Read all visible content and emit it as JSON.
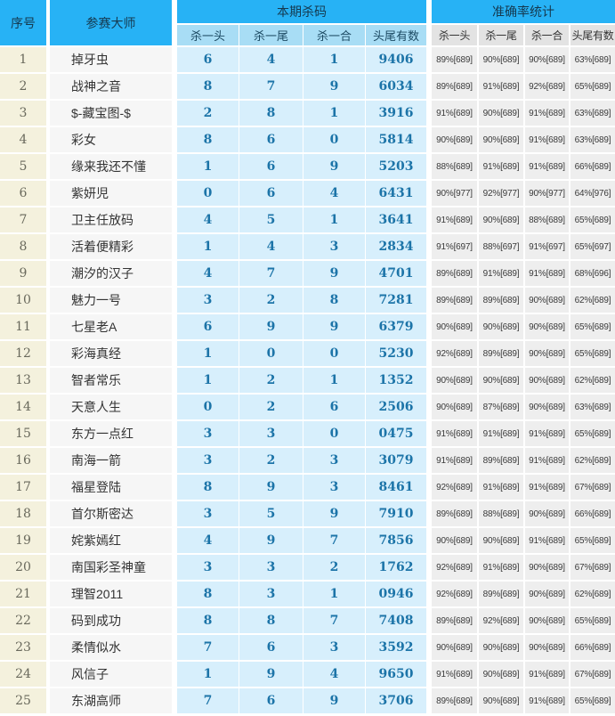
{
  "colors": {
    "header_blue": "#27b2f5",
    "subheader_blue": "#a8ddf5",
    "cell_blue": "#d7effc",
    "serial_bg": "#f4f1dd",
    "name_bg": "#f6f6f6",
    "subheader_gray": "#e3e3e3",
    "cell_gray": "#eeeeee",
    "value_blue": "#1c74a8"
  },
  "table": {
    "col_serial": "序号",
    "col_master": "参赛大师",
    "group_current": "本期杀码",
    "group_accuracy": "准确率统计",
    "sub_headers": [
      "杀一头",
      "杀一尾",
      "杀一合",
      "头尾有数"
    ],
    "rows": [
      {
        "no": "1",
        "name": "掉牙虫",
        "kill": [
          "6",
          "4",
          "1",
          "9406"
        ],
        "acc": [
          "89%[689]",
          "90%[689]",
          "90%[689]",
          "63%[689]"
        ]
      },
      {
        "no": "2",
        "name": "战神之音",
        "kill": [
          "8",
          "7",
          "9",
          "6034"
        ],
        "acc": [
          "89%[689]",
          "91%[689]",
          "92%[689]",
          "65%[689]"
        ]
      },
      {
        "no": "3",
        "name": "$-藏宝图-$",
        "kill": [
          "2",
          "8",
          "1",
          "3916"
        ],
        "acc": [
          "91%[689]",
          "90%[689]",
          "91%[689]",
          "63%[689]"
        ]
      },
      {
        "no": "4",
        "name": "彩女",
        "kill": [
          "8",
          "6",
          "0",
          "5814"
        ],
        "acc": [
          "90%[689]",
          "90%[689]",
          "91%[689]",
          "63%[689]"
        ]
      },
      {
        "no": "5",
        "name": "缘来我还不懂",
        "kill": [
          "1",
          "6",
          "9",
          "5203"
        ],
        "acc": [
          "88%[689]",
          "91%[689]",
          "91%[689]",
          "66%[689]"
        ]
      },
      {
        "no": "6",
        "name": "紫妍児",
        "kill": [
          "0",
          "6",
          "4",
          "6431"
        ],
        "acc": [
          "90%[977]",
          "92%[977]",
          "90%[977]",
          "64%[976]"
        ]
      },
      {
        "no": "7",
        "name": "卫主任放码",
        "kill": [
          "4",
          "5",
          "1",
          "3641"
        ],
        "acc": [
          "91%[689]",
          "90%[689]",
          "88%[689]",
          "65%[689]"
        ]
      },
      {
        "no": "8",
        "name": "活着便精彩",
        "kill": [
          "1",
          "4",
          "3",
          "2834"
        ],
        "acc": [
          "91%[697]",
          "88%[697]",
          "91%[697]",
          "65%[697]"
        ]
      },
      {
        "no": "9",
        "name": "潮汐的汉子",
        "kill": [
          "4",
          "7",
          "9",
          "4701"
        ],
        "acc": [
          "89%[689]",
          "91%[689]",
          "91%[689]",
          "68%[696]"
        ]
      },
      {
        "no": "10",
        "name": "魅力一号",
        "kill": [
          "3",
          "2",
          "8",
          "7281"
        ],
        "acc": [
          "89%[689]",
          "89%[689]",
          "90%[689]",
          "62%[689]"
        ]
      },
      {
        "no": "11",
        "name": "七星老A",
        "kill": [
          "6",
          "9",
          "9",
          "6379"
        ],
        "acc": [
          "90%[689]",
          "90%[689]",
          "90%[689]",
          "65%[689]"
        ]
      },
      {
        "no": "12",
        "name": "彩海真经",
        "kill": [
          "1",
          "0",
          "0",
          "5230"
        ],
        "acc": [
          "92%[689]",
          "89%[689]",
          "90%[689]",
          "65%[689]"
        ]
      },
      {
        "no": "13",
        "name": "智者常乐",
        "kill": [
          "1",
          "2",
          "1",
          "1352"
        ],
        "acc": [
          "90%[689]",
          "90%[689]",
          "90%[689]",
          "62%[689]"
        ]
      },
      {
        "no": "14",
        "name": "天意人生",
        "kill": [
          "0",
          "2",
          "6",
          "2506"
        ],
        "acc": [
          "90%[689]",
          "87%[689]",
          "90%[689]",
          "63%[689]"
        ]
      },
      {
        "no": "15",
        "name": "东方一点红",
        "kill": [
          "3",
          "3",
          "0",
          "0475"
        ],
        "acc": [
          "91%[689]",
          "91%[689]",
          "91%[689]",
          "65%[689]"
        ]
      },
      {
        "no": "16",
        "name": "南海一箭",
        "kill": [
          "3",
          "2",
          "3",
          "3079"
        ],
        "acc": [
          "91%[689]",
          "89%[689]",
          "91%[689]",
          "62%[689]"
        ]
      },
      {
        "no": "17",
        "name": "福星登陆",
        "kill": [
          "8",
          "9",
          "3",
          "8461"
        ],
        "acc": [
          "92%[689]",
          "91%[689]",
          "91%[689]",
          "67%[689]"
        ]
      },
      {
        "no": "18",
        "name": "首尔斯密达",
        "kill": [
          "3",
          "5",
          "9",
          "7910"
        ],
        "acc": [
          "89%[689]",
          "88%[689]",
          "90%[689]",
          "66%[689]"
        ]
      },
      {
        "no": "19",
        "name": "姹紫嫣红",
        "kill": [
          "4",
          "9",
          "7",
          "7856"
        ],
        "acc": [
          "90%[689]",
          "90%[689]",
          "91%[689]",
          "65%[689]"
        ]
      },
      {
        "no": "20",
        "name": "南国彩圣神童",
        "kill": [
          "3",
          "3",
          "2",
          "1762"
        ],
        "acc": [
          "92%[689]",
          "91%[689]",
          "90%[689]",
          "67%[689]"
        ]
      },
      {
        "no": "21",
        "name": "理智2011",
        "kill": [
          "8",
          "3",
          "1",
          "0946"
        ],
        "acc": [
          "92%[689]",
          "89%[689]",
          "90%[689]",
          "62%[689]"
        ]
      },
      {
        "no": "22",
        "name": "码到成功",
        "kill": [
          "8",
          "8",
          "7",
          "7408"
        ],
        "acc": [
          "89%[689]",
          "92%[689]",
          "90%[689]",
          "65%[689]"
        ]
      },
      {
        "no": "23",
        "name": "柔情似水",
        "kill": [
          "7",
          "6",
          "3",
          "3592"
        ],
        "acc": [
          "90%[689]",
          "90%[689]",
          "90%[689]",
          "66%[689]"
        ]
      },
      {
        "no": "24",
        "name": "风信子",
        "kill": [
          "1",
          "9",
          "4",
          "9650"
        ],
        "acc": [
          "91%[689]",
          "90%[689]",
          "91%[689]",
          "67%[689]"
        ]
      },
      {
        "no": "25",
        "name": "东湖高师",
        "kill": [
          "7",
          "6",
          "9",
          "3706"
        ],
        "acc": [
          "89%[689]",
          "90%[689]",
          "91%[689]",
          "65%[689]"
        ]
      }
    ]
  }
}
